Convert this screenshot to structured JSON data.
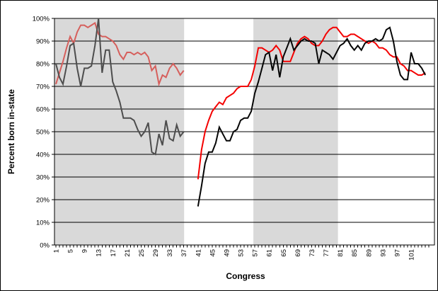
{
  "chart_data": {
    "type": "line",
    "xlabel": "Congress",
    "ylabel": "Percent born in-state",
    "x_axis": {
      "min": 1,
      "max": 105,
      "minor_tick_step": 1,
      "tick_labels": [
        1,
        5,
        9,
        13,
        17,
        21,
        25,
        29,
        33,
        37,
        41,
        45,
        49,
        53,
        57,
        61,
        65,
        69,
        73,
        77,
        81,
        85,
        89,
        93,
        97,
        101
      ],
      "label_rotation_deg": -90
    },
    "y_axis": {
      "min": 0,
      "max": 100,
      "tick_step": 10,
      "tick_labels": [
        "0%",
        "10%",
        "20%",
        "30%",
        "40%",
        "50%",
        "60%",
        "70%",
        "80%",
        "90%",
        "100%"
      ]
    },
    "grid": "horizontal",
    "legend": "none",
    "shaded_regions": [
      {
        "from": 0.6,
        "to": 37.1
      },
      {
        "from": 56.6,
        "to": 80.4
      }
    ],
    "band_color": "#D9D9D9",
    "gap_congresses": [
      38,
      39,
      40
    ],
    "series": [
      {
        "name": "red-series",
        "start_x": 1,
        "colors": {
          "era1": "#D65F5C",
          "era2": "#F40000"
        },
        "values": [
          71,
          76,
          81,
          87,
          92,
          89,
          94,
          97,
          97,
          96,
          97,
          98,
          93,
          92,
          92,
          91,
          90,
          88,
          84,
          82,
          85,
          85,
          84,
          85,
          84,
          85,
          83,
          77,
          79,
          71,
          75,
          74,
          78,
          80,
          78,
          75,
          77,
          null,
          null,
          null,
          29,
          42,
          50,
          55,
          59,
          61,
          63,
          62,
          65,
          66,
          67,
          69,
          70,
          70,
          70,
          73,
          79,
          87,
          87,
          86,
          85,
          86,
          88,
          86,
          81,
          81,
          81,
          85,
          89,
          91,
          92,
          91,
          89,
          88,
          88,
          90,
          93,
          95,
          96,
          96,
          94,
          92,
          92,
          93,
          93,
          92,
          91,
          90,
          89,
          90,
          89,
          87,
          87,
          86,
          84,
          83,
          83,
          80,
          79,
          77,
          77,
          76,
          75,
          75,
          76
        ]
      },
      {
        "name": "dark-series",
        "start_x": 1,
        "colors": {
          "era1": "#4D4D4D",
          "era2": "#050505"
        },
        "values": [
          80,
          74,
          71,
          79,
          88,
          89,
          78,
          70,
          78,
          78,
          79,
          88,
          100,
          76,
          86,
          86,
          72,
          68,
          63,
          56,
          56,
          56,
          55,
          51,
          48,
          50,
          54,
          41,
          40,
          49,
          44,
          55,
          47,
          46,
          53,
          48,
          50,
          null,
          null,
          null,
          17,
          26,
          36,
          41,
          41,
          45,
          52,
          49,
          46,
          46,
          50,
          51,
          55,
          56,
          56,
          59,
          67,
          72,
          78,
          84,
          85,
          77,
          84,
          74,
          83,
          87,
          91,
          86,
          88,
          90,
          91,
          90,
          90,
          89,
          80,
          86,
          85,
          84,
          82,
          85,
          88,
          89,
          91,
          88,
          86,
          88,
          86,
          89,
          90,
          90,
          91,
          90,
          91,
          95,
          96,
          90,
          81,
          75,
          73,
          73,
          85,
          80,
          80,
          78,
          75
        ]
      }
    ]
  }
}
